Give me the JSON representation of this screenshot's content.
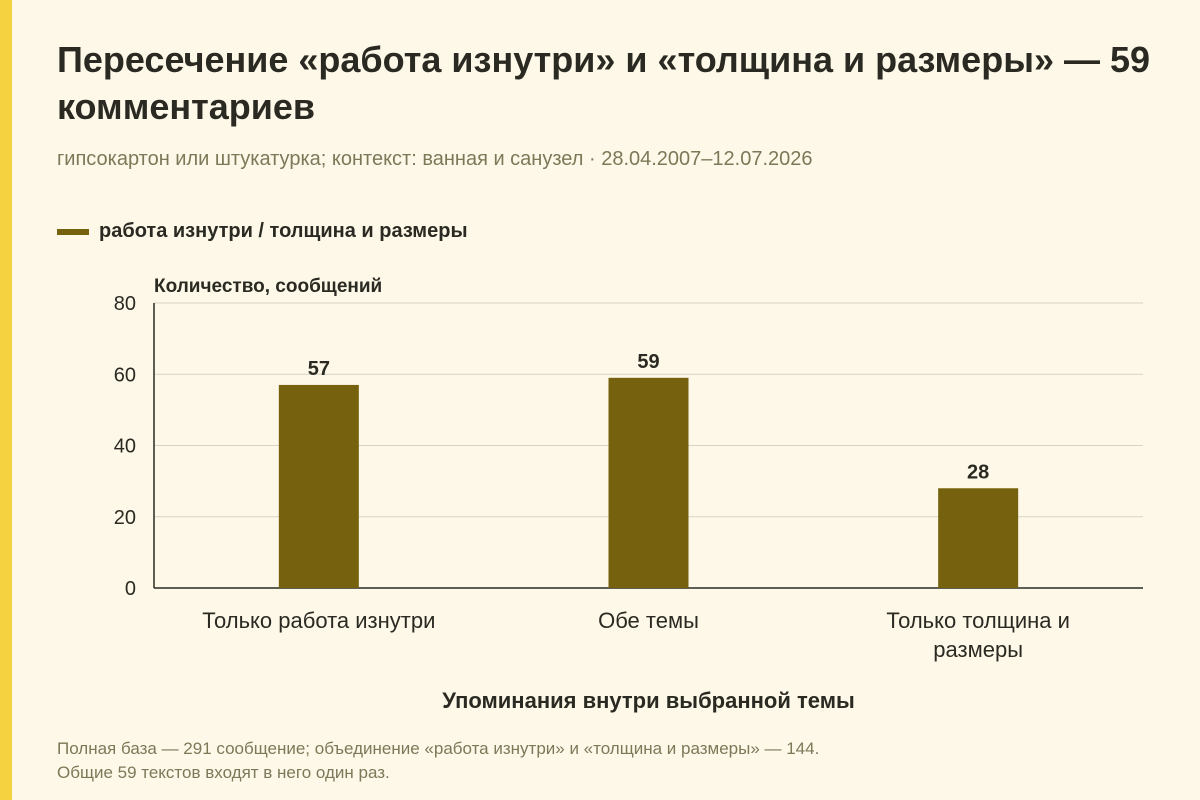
{
  "title": "Пересечение «работа изнутри» и «толщина и размеры» — 59 комментариев",
  "subtitle": "гипсокартон или штукатурка; контекст: ванная и санузел · 28.04.2007–12.07.2026",
  "note_lines": [
    "Полная база — 291 сообщение; объединение «работа изнутри» и «толщина и размеры» — 144.",
    "Общие 59 текстов входят в него один раз."
  ],
  "colors": {
    "bar": "#76620e",
    "accent": "#f5d340",
    "background": "#fdf8e8",
    "grid": "#d8d4c4"
  },
  "chart_data": {
    "type": "bar",
    "ylabel": "Количество, сообщений",
    "xlabel": "Упоминания внутри выбранной темы",
    "categories": [
      [
        "Только работа изнутри"
      ],
      [
        "Обе темы"
      ],
      [
        "Только толщина и",
        "размеры"
      ]
    ],
    "series": [
      {
        "name": "работа изнутри / толщина и размеры",
        "values": [
          57,
          59,
          28
        ]
      }
    ],
    "ylim": [
      0,
      80
    ],
    "yticks": [
      "0",
      "20",
      "40",
      "60",
      "80"
    ],
    "grid": true,
    "legend_position": "top-left"
  }
}
